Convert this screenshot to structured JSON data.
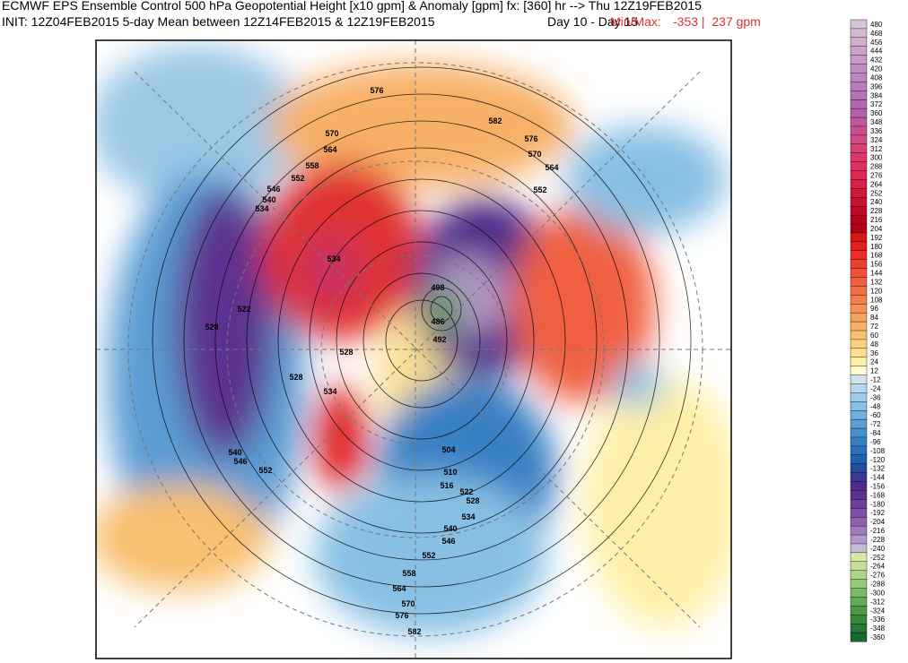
{
  "header": {
    "line1": "ECMWF EPS Ensemble Control 500 hPa Geopotential Height [x10 gpm] & Anomaly [gpm] fx: [360] hr --> Thu 12Z19FEB2015",
    "line2": "INIT: 12Z04FEB2015 5-day Mean between 12Z14FEB2015 & 12Z19FEB2015",
    "day_range": "Day 10 - Day 15",
    "minmax_label": "Min/Max:",
    "minmax_values": "-353 |  237 gpm"
  },
  "colorbar": {
    "labels": [
      480,
      468,
      456,
      444,
      432,
      420,
      408,
      396,
      384,
      372,
      360,
      348,
      336,
      324,
      312,
      300,
      288,
      276,
      264,
      252,
      240,
      228,
      216,
      204,
      192,
      180,
      168,
      156,
      144,
      132,
      120,
      108,
      96,
      84,
      72,
      60,
      48,
      36,
      24,
      12,
      -12,
      -24,
      -36,
      -48,
      -60,
      -72,
      -84,
      -96,
      -108,
      -120,
      -132,
      -144,
      -156,
      -168,
      -180,
      -192,
      -204,
      -216,
      -228,
      -240,
      -252,
      -264,
      -276,
      -288,
      -300,
      -312,
      -324,
      -336,
      -348,
      -360
    ],
    "colors": [
      "#d8c4d8",
      "#d4b8d4",
      "#ccb0cc",
      "#c8a4c8",
      "#c49cc4",
      "#c090c0",
      "#bc88bc",
      "#b87cb8",
      "#b474b4",
      "#b068b0",
      "#b460a8",
      "#c0589c",
      "#c85090",
      "#d04884",
      "#d84078",
      "#dc386c",
      "#e03060",
      "#e02854",
      "#d82048",
      "#d0183c",
      "#c81030",
      "#c00828",
      "#b80020",
      "#b00018",
      "#d81818",
      "#e02020",
      "#e83028",
      "#ec4030",
      "#f05038",
      "#f06040",
      "#f07048",
      "#f08050",
      "#f49058",
      "#f4a060",
      "#f8b068",
      "#f8c070",
      "#fcd080",
      "#fce090",
      "#fef0a8",
      "#fffcd0",
      "#d0e4f0",
      "#b8d8ec",
      "#a0cce8",
      "#88c0e4",
      "#70b0dc",
      "#5aa0d4",
      "#4890cc",
      "#3880c4",
      "#2870bc",
      "#2060b0",
      "#2a4aa0",
      "#3c3890",
      "#4c2c88",
      "#5c3090",
      "#6c4098",
      "#7c50a4",
      "#8c64ac",
      "#a07cbc",
      "#b498c8",
      "#c8b8d8",
      "#d8e8a8",
      "#c4e098",
      "#acd488",
      "#94c878",
      "#7cb868",
      "#64a858",
      "#4c9848",
      "#3a8840",
      "#287838",
      "#186830"
    ]
  },
  "map": {
    "contour_labels": [
      "576",
      "570",
      "564",
      "558",
      "552",
      "546",
      "540",
      "534",
      "522",
      "528",
      "582",
      "576",
      "570",
      "564",
      "552",
      "534",
      "528",
      "528",
      "534",
      "498",
      "486",
      "492",
      "504",
      "510",
      "516",
      "522",
      "528",
      "534",
      "540",
      "546",
      "552",
      "558",
      "564",
      "570",
      "576",
      "582",
      "540",
      "546",
      "552"
    ]
  }
}
